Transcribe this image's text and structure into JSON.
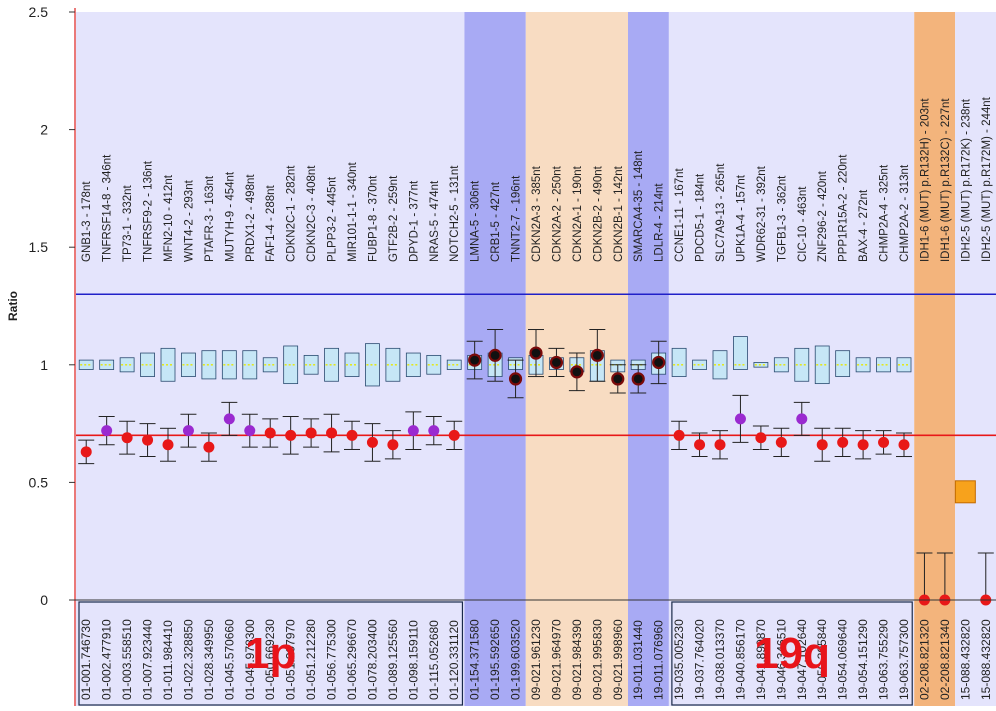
{
  "chart_data": {
    "type": "scatter",
    "title": "",
    "ylabel": "Ratio",
    "ylim": [
      0,
      2.5
    ],
    "yticks": [
      "0",
      "0.5",
      "1",
      "1.5",
      "2",
      "2.5"
    ],
    "grid": false,
    "reference_lines": [
      {
        "y": 1.3,
        "color": "#2020c8"
      },
      {
        "y": 0.7,
        "color": "#e81818"
      }
    ],
    "region_labels": [
      {
        "text": "1p",
        "group": "1p"
      },
      {
        "text": "19q",
        "group": "19q"
      }
    ],
    "colors": {
      "bg_lavender": "#e4e4fc",
      "bg_blue": "#a8aaf4",
      "bg_peach": "#f8dcc2",
      "bg_orange": "#f3b47c",
      "box_fill": "#c6e6f6",
      "box_stroke": "#2a4a70",
      "median": "#e8e800",
      "dot_red": "#e81818",
      "dot_purple": "#9a2ad0",
      "dot_dark": "#7a0a0a",
      "square_orange": "#f7a21c"
    },
    "probes": [
      {
        "name": "GNB1-3 - 178nt",
        "x": "01-001.746730",
        "value": 0.63,
        "err": 0.05,
        "color": "red",
        "bg": "lavender",
        "box": [
          0.98,
          1.02
        ],
        "group": "1p"
      },
      {
        "name": "TNFRSF14-8 - 346nt",
        "x": "01-002.477910",
        "value": 0.72,
        "err": 0.06,
        "color": "purple",
        "bg": "lavender",
        "box": [
          0.98,
          1.02
        ],
        "group": "1p"
      },
      {
        "name": "TP73-1 - 332nt",
        "x": "01-003.558510",
        "value": 0.69,
        "err": 0.07,
        "color": "red",
        "bg": "lavender",
        "box": [
          0.97,
          1.03
        ],
        "group": "1p"
      },
      {
        "name": "TNFRSF9-2 - 136nt",
        "x": "01-007.923440",
        "value": 0.68,
        "err": 0.07,
        "color": "red",
        "bg": "lavender",
        "box": [
          0.95,
          1.05
        ],
        "group": "1p"
      },
      {
        "name": "MFN2-10 - 412nt",
        "x": "01-011.984410",
        "value": 0.66,
        "err": 0.07,
        "color": "red",
        "bg": "lavender",
        "box": [
          0.93,
          1.07
        ],
        "group": "1p"
      },
      {
        "name": "WNT4-2 - 293nt",
        "x": "01-022.328850",
        "value": 0.72,
        "err": 0.07,
        "color": "purple",
        "bg": "lavender",
        "box": [
          0.95,
          1.05
        ],
        "group": "1p"
      },
      {
        "name": "PTAFR-3 - 163nt",
        "x": "01-028.349950",
        "value": 0.65,
        "err": 0.06,
        "color": "red",
        "bg": "lavender",
        "box": [
          0.94,
          1.06
        ],
        "group": "1p"
      },
      {
        "name": "MUTYH-9 - 454nt",
        "x": "01-045.570660",
        "value": 0.77,
        "err": 0.07,
        "color": "purple",
        "bg": "lavender",
        "box": [
          0.94,
          1.06
        ],
        "group": "1p"
      },
      {
        "name": "PRDX1-2 - 498nt",
        "x": "01-045.978300",
        "value": 0.72,
        "err": 0.07,
        "color": "purple",
        "bg": "lavender",
        "box": [
          0.94,
          1.06
        ],
        "group": "1p"
      },
      {
        "name": "FAF1-4 - 288nt",
        "x": "01-050.669230",
        "value": 0.71,
        "err": 0.06,
        "color": "red",
        "bg": "lavender",
        "box": [
          0.97,
          1.03
        ],
        "group": "1p"
      },
      {
        "name": "CDKN2C-1 - 282nt",
        "x": "01-051.207970",
        "value": 0.7,
        "err": 0.08,
        "color": "red",
        "bg": "lavender",
        "box": [
          0.92,
          1.08
        ],
        "group": "1p"
      },
      {
        "name": "CDKN2C-3 - 408nt",
        "x": "01-051.212280",
        "value": 0.71,
        "err": 0.06,
        "color": "red",
        "bg": "lavender",
        "box": [
          0.96,
          1.04
        ],
        "group": "1p"
      },
      {
        "name": "PLPP3-2 - 445nt",
        "x": "01-056.775300",
        "value": 0.71,
        "err": 0.08,
        "color": "red",
        "bg": "lavender",
        "box": [
          0.93,
          1.07
        ],
        "group": "1p"
      },
      {
        "name": "MIR101-1-1 - 340nt",
        "x": "01-065.296670",
        "value": 0.7,
        "err": 0.06,
        "color": "red",
        "bg": "lavender",
        "box": [
          0.95,
          1.05
        ],
        "group": "1p"
      },
      {
        "name": "FUBP1-8 - 370nt",
        "x": "01-078.203400",
        "value": 0.67,
        "err": 0.08,
        "color": "red",
        "bg": "lavender",
        "box": [
          0.91,
          1.09
        ],
        "group": "1p"
      },
      {
        "name": "GTF2B-2 - 259nt",
        "x": "01-089.125560",
        "value": 0.66,
        "err": 0.06,
        "color": "red",
        "bg": "lavender",
        "box": [
          0.93,
          1.07
        ],
        "group": "1p"
      },
      {
        "name": "DPYD-1 - 377nt",
        "x": "01-098.159110",
        "value": 0.72,
        "err": 0.08,
        "color": "purple",
        "bg": "lavender",
        "box": [
          0.95,
          1.05
        ],
        "group": "1p"
      },
      {
        "name": "NRAS-5 - 474nt",
        "x": "01-115.052680",
        "value": 0.72,
        "err": 0.06,
        "color": "purple",
        "bg": "lavender",
        "box": [
          0.96,
          1.04
        ],
        "group": "1p"
      },
      {
        "name": "NOTCH2-5 - 131nt",
        "x": "01-120.331120",
        "value": 0.7,
        "err": 0.06,
        "color": "red",
        "bg": "lavender",
        "box": [
          0.98,
          1.02
        ],
        "group": "1p"
      },
      {
        "name": "LMNA-5 - 306nt",
        "x": "01-154.371580",
        "value": 1.02,
        "err": 0.08,
        "color": "dark",
        "bg": "blue",
        "box": [
          0.98,
          1.04
        ],
        "group": ""
      },
      {
        "name": "CRB1-5 - 427nt",
        "x": "01-195.592650",
        "value": 1.04,
        "err": 0.11,
        "color": "dark",
        "bg": "blue",
        "box": [
          0.95,
          1.05
        ],
        "group": ""
      },
      {
        "name": "TNNT2-7 - 196nt",
        "x": "01-199.603520",
        "value": 0.94,
        "err": 0.08,
        "color": "dark",
        "bg": "blue",
        "box": [
          0.98,
          1.03
        ],
        "group": ""
      },
      {
        "name": "CDKN2A-3 - 385nt",
        "x": "09-021.961230",
        "value": 1.05,
        "err": 0.1,
        "color": "dark",
        "bg": "peach",
        "box": [
          0.96,
          1.04
        ],
        "group": ""
      },
      {
        "name": "CDKN2A-2 - 250nt",
        "x": "09-021.964970",
        "value": 1.01,
        "err": 0.06,
        "color": "dark",
        "bg": "peach",
        "box": [
          0.98,
          1.03
        ],
        "group": ""
      },
      {
        "name": "CDKN2A-1 - 190nt",
        "x": "09-021.984390",
        "value": 0.97,
        "err": 0.08,
        "color": "dark",
        "bg": "peach",
        "box": [
          0.97,
          1.03
        ],
        "group": ""
      },
      {
        "name": "CDKN2B-2 - 490nt",
        "x": "09-021.995830",
        "value": 1.04,
        "err": 0.11,
        "color": "dark",
        "bg": "peach",
        "box": [
          0.93,
          1.06
        ],
        "group": ""
      },
      {
        "name": "CDKN2B-1 - 142nt",
        "x": "09-021.998960",
        "value": 0.94,
        "err": 0.06,
        "color": "dark",
        "bg": "peach",
        "box": [
          0.97,
          1.02
        ],
        "group": ""
      },
      {
        "name": "SMARCA4-35 - 148nt",
        "x": "19-011.031440",
        "value": 0.94,
        "err": 0.06,
        "color": "dark",
        "bg": "blue",
        "box": [
          0.98,
          1.02
        ],
        "group": ""
      },
      {
        "name": "LDLR-4 - 214nt",
        "x": "19-011.076960",
        "value": 1.01,
        "err": 0.09,
        "color": "dark",
        "bg": "blue",
        "box": [
          0.96,
          1.05
        ],
        "group": ""
      },
      {
        "name": "CCNE1-11 - 167nt",
        "x": "19-035.005230",
        "value": 0.7,
        "err": 0.06,
        "color": "red",
        "bg": "lavender",
        "box": [
          0.95,
          1.07
        ],
        "group": "19q"
      },
      {
        "name": "PDCD5-1 - 184nt",
        "x": "19-037.764020",
        "value": 0.66,
        "err": 0.05,
        "color": "red",
        "bg": "lavender",
        "box": [
          0.98,
          1.02
        ],
        "group": "19q"
      },
      {
        "name": "SLC7A9-13 - 265nt",
        "x": "19-038.013370",
        "value": 0.66,
        "err": 0.06,
        "color": "red",
        "bg": "lavender",
        "box": [
          0.94,
          1.06
        ],
        "group": "19q"
      },
      {
        "name": "UPK1A-4 - 157nt",
        "x": "19-040.856170",
        "value": 0.77,
        "err": 0.1,
        "color": "purple",
        "bg": "lavender",
        "box": [
          0.98,
          1.12
        ],
        "group": "19q"
      },
      {
        "name": "WDR62-31 - 392nt",
        "x": "19-041.890870",
        "value": 0.69,
        "err": 0.05,
        "color": "red",
        "bg": "lavender",
        "box": [
          0.99,
          1.01
        ],
        "group": "19q"
      },
      {
        "name": "TGFB1-3 - 362nt",
        "x": "19-046.346510",
        "value": 0.67,
        "err": 0.06,
        "color": "red",
        "bg": "lavender",
        "box": [
          0.97,
          1.03
        ],
        "group": "19q"
      },
      {
        "name": "CIC-10 - 463nt",
        "x": "19-047.102640",
        "value": 0.77,
        "err": 0.07,
        "color": "purple",
        "bg": "lavender",
        "box": [
          0.93,
          1.07
        ],
        "group": "19q"
      },
      {
        "name": "ZNF296-2 - 420nt",
        "x": "19-050.305840",
        "value": 0.66,
        "err": 0.07,
        "color": "red",
        "bg": "lavender",
        "box": [
          0.92,
          1.08
        ],
        "group": "19q"
      },
      {
        "name": "PPP1R15A-2 - 220nt",
        "x": "19-054.069640",
        "value": 0.67,
        "err": 0.06,
        "color": "red",
        "bg": "lavender",
        "box": [
          0.95,
          1.06
        ],
        "group": "19q"
      },
      {
        "name": "BAX-4 - 272nt",
        "x": "19-054.151290",
        "value": 0.66,
        "err": 0.06,
        "color": "red",
        "bg": "lavender",
        "box": [
          0.97,
          1.03
        ],
        "group": "19q"
      },
      {
        "name": "CHMP2A-4 - 325nt",
        "x": "19-063.755290",
        "value": 0.67,
        "err": 0.05,
        "color": "red",
        "bg": "lavender",
        "box": [
          0.97,
          1.03
        ],
        "group": "19q"
      },
      {
        "name": "CHMP2A-2 - 313nt",
        "x": "19-063.757300",
        "value": 0.66,
        "err": 0.05,
        "color": "red",
        "bg": "lavender",
        "box": [
          0.97,
          1.03
        ],
        "group": "19q"
      },
      {
        "name": "IDH1-6 (MUT) p.R132H) - 203nt",
        "x": "02-208.821320",
        "value": 0.0,
        "err": 0.2,
        "color": "red",
        "bg": "orange",
        "box": null,
        "group": ""
      },
      {
        "name": "IDH1-6 (MUT) p.R132C) - 227nt",
        "x": "02-208.821340",
        "value": 0.0,
        "err": 0.2,
        "color": "red",
        "bg": "orange",
        "box": null,
        "group": ""
      },
      {
        "name": "IDH2-5 (MUT) p.R172K) - 238nt",
        "x": "15-088.432820",
        "value": 0.46,
        "err": 0.0,
        "color": "square",
        "bg": "lavender",
        "box": null,
        "group": ""
      },
      {
        "name": "IDH2-5 (MUT) p.R172M) - 244nt",
        "x": "15-088.432820",
        "value": 0.0,
        "err": 0.2,
        "color": "red",
        "bg": "lavender",
        "box": null,
        "group": ""
      }
    ]
  }
}
